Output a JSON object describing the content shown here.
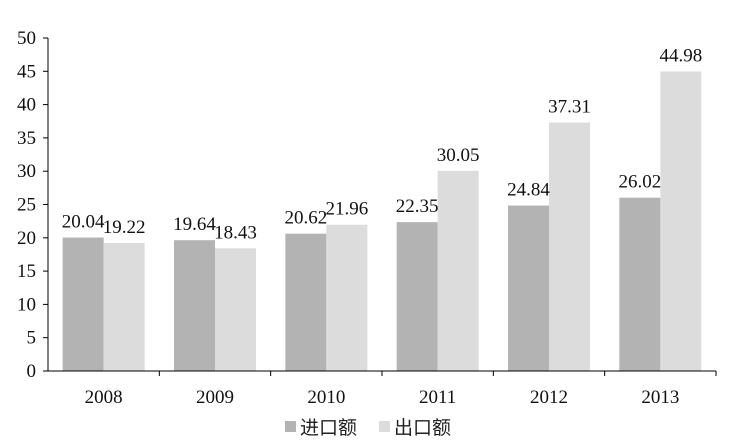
{
  "chart_data": {
    "type": "bar",
    "categories": [
      "2008",
      "2009",
      "2010",
      "2011",
      "2012",
      "2013"
    ],
    "series": [
      {
        "name": "进口额",
        "color": "#b3b3b3",
        "values": [
          20.04,
          19.64,
          20.62,
          22.35,
          24.84,
          26.02
        ]
      },
      {
        "name": "出口额",
        "color": "#dcdcdc",
        "values": [
          19.22,
          18.43,
          21.96,
          30.05,
          37.31,
          44.98
        ]
      }
    ],
    "ylim": [
      0,
      50
    ],
    "yticks": [
      0,
      5,
      10,
      15,
      20,
      25,
      30,
      35,
      40,
      45,
      50
    ],
    "grid": false,
    "legend_position": "bottom",
    "data_labels": true
  }
}
